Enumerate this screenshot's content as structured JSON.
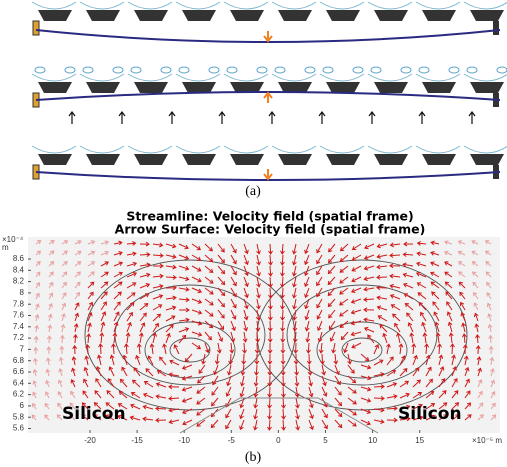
{
  "panel_a": {
    "caption": "(a)"
  },
  "panel_b": {
    "title_lines": [
      "Streamline: Velocity field (spatial frame)",
      "Arrow Surface: Velocity field (spatial frame)"
    ],
    "y_axis": {
      "exponent": "×10⁻⁴",
      "unit": "m",
      "ticks": [
        "8.6",
        "8.4",
        "8.2",
        "8",
        "7.8",
        "7.6",
        "7.4",
        "7.2",
        "7",
        "6.8",
        "6.6",
        "6.4",
        "6.2",
        "6",
        "5.8",
        "5.6"
      ]
    },
    "x_axis": {
      "exponent": "×10⁻⁵ m",
      "ticks": [
        "-20",
        "-15",
        "-10",
        "-5",
        "0",
        "5",
        "10",
        "15"
      ]
    },
    "labels": [
      "Silicon",
      "Silicon"
    ],
    "caption": "(b)"
  }
}
